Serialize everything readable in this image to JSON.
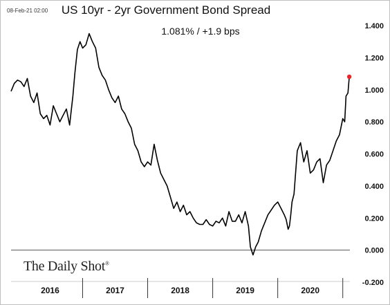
{
  "timestamp": "08-Feb-21 02:00",
  "brand": "The Daily Shot",
  "brand_mark": "®",
  "colors": {
    "line": "#000000",
    "last_point": "#e8262b",
    "zero_line": "#555555"
  },
  "chart_data": {
    "type": "line",
    "title": "US 10yr - 2yr Government Bond Spread",
    "subtitle": "1.081%  /  +1.9 bps",
    "xlabel": "",
    "ylabel": "",
    "ylim": [
      -0.2,
      1.4
    ],
    "xlim": [
      2015.9,
      2021.12
    ],
    "y_axis_position": "right",
    "y_ticks": [
      {
        "value": 1.4,
        "label": "1.400"
      },
      {
        "value": 1.2,
        "label": "1.200"
      },
      {
        "value": 1.0,
        "label": "1.000"
      },
      {
        "value": 0.8,
        "label": "0.800"
      },
      {
        "value": 0.6,
        "label": "0.600"
      },
      {
        "value": 0.4,
        "label": "0.400"
      },
      {
        "value": 0.2,
        "label": "0.200"
      },
      {
        "value": 0.0,
        "label": "0.000"
      },
      {
        "value": -0.2,
        "label": "-0.200"
      }
    ],
    "x_ticks": [
      {
        "value": 2016.5,
        "label": "2016"
      },
      {
        "value": 2017.5,
        "label": "2017"
      },
      {
        "value": 2018.5,
        "label": "2018"
      },
      {
        "value": 2019.5,
        "label": "2019"
      },
      {
        "value": 2020.5,
        "label": "2020"
      }
    ],
    "x_year_boundaries": [
      2017,
      2018,
      2019,
      2020,
      2021
    ],
    "series": [
      {
        "x": [
          2015.9,
          2015.95,
          2016.0,
          2016.05,
          2016.1,
          2016.15,
          2016.2,
          2016.25,
          2016.3,
          2016.35,
          2016.4,
          2016.45,
          2016.5,
          2016.55,
          2016.6,
          2016.65,
          2016.7,
          2016.75,
          2016.8,
          2016.82,
          2016.85,
          2016.88,
          2016.92,
          2016.96,
          2017.0,
          2017.05,
          2017.1,
          2017.15,
          2017.2,
          2017.25,
          2017.3,
          2017.35,
          2017.4,
          2017.45,
          2017.5,
          2017.55,
          2017.6,
          2017.65,
          2017.7,
          2017.75,
          2017.8,
          2017.85,
          2017.9,
          2017.95,
          2018.0,
          2018.05,
          2018.1,
          2018.15,
          2018.2,
          2018.25,
          2018.3,
          2018.35,
          2018.4,
          2018.45,
          2018.5,
          2018.55,
          2018.6,
          2018.65,
          2018.7,
          2018.75,
          2018.8,
          2018.85,
          2018.9,
          2018.95,
          2019.0,
          2019.05,
          2019.1,
          2019.15,
          2019.2,
          2019.25,
          2019.3,
          2019.35,
          2019.4,
          2019.45,
          2019.5,
          2019.55,
          2019.58,
          2019.62,
          2019.66,
          2019.7,
          2019.75,
          2019.8,
          2019.85,
          2019.9,
          2019.95,
          2020.0,
          2020.05,
          2020.1,
          2020.13,
          2020.16,
          2020.18,
          2020.2,
          2020.22,
          2020.25,
          2020.3,
          2020.35,
          2020.4,
          2020.45,
          2020.5,
          2020.55,
          2020.6,
          2020.65,
          2020.7,
          2020.75,
          2020.8,
          2020.85,
          2020.9,
          2020.95,
          2020.98,
          2021.0,
          2021.03,
          2021.05,
          2021.08,
          2021.1
        ],
        "y": [
          0.99,
          1.04,
          1.06,
          1.05,
          1.02,
          1.07,
          0.96,
          0.92,
          0.98,
          0.85,
          0.82,
          0.84,
          0.78,
          0.9,
          0.85,
          0.8,
          0.84,
          0.88,
          0.78,
          0.85,
          0.96,
          1.1,
          1.25,
          1.3,
          1.26,
          1.28,
          1.35,
          1.3,
          1.26,
          1.14,
          1.09,
          1.06,
          1.0,
          0.95,
          0.92,
          0.96,
          0.88,
          0.85,
          0.8,
          0.76,
          0.66,
          0.62,
          0.55,
          0.52,
          0.55,
          0.53,
          0.66,
          0.56,
          0.48,
          0.44,
          0.4,
          0.33,
          0.26,
          0.3,
          0.24,
          0.28,
          0.22,
          0.24,
          0.2,
          0.17,
          0.16,
          0.16,
          0.19,
          0.16,
          0.15,
          0.18,
          0.17,
          0.2,
          0.15,
          0.24,
          0.18,
          0.18,
          0.22,
          0.17,
          0.24,
          0.15,
          0.02,
          -0.03,
          0.02,
          0.05,
          0.12,
          0.17,
          0.22,
          0.25,
          0.28,
          0.3,
          0.26,
          0.22,
          0.19,
          0.13,
          0.15,
          0.22,
          0.3,
          0.35,
          0.62,
          0.67,
          0.55,
          0.62,
          0.48,
          0.5,
          0.55,
          0.57,
          0.42,
          0.53,
          0.56,
          0.62,
          0.68,
          0.72,
          0.78,
          0.82,
          0.8,
          0.96,
          0.98,
          1.08
        ]
      }
    ],
    "last_point": {
      "x": 2021.1,
      "y": 1.081
    }
  }
}
